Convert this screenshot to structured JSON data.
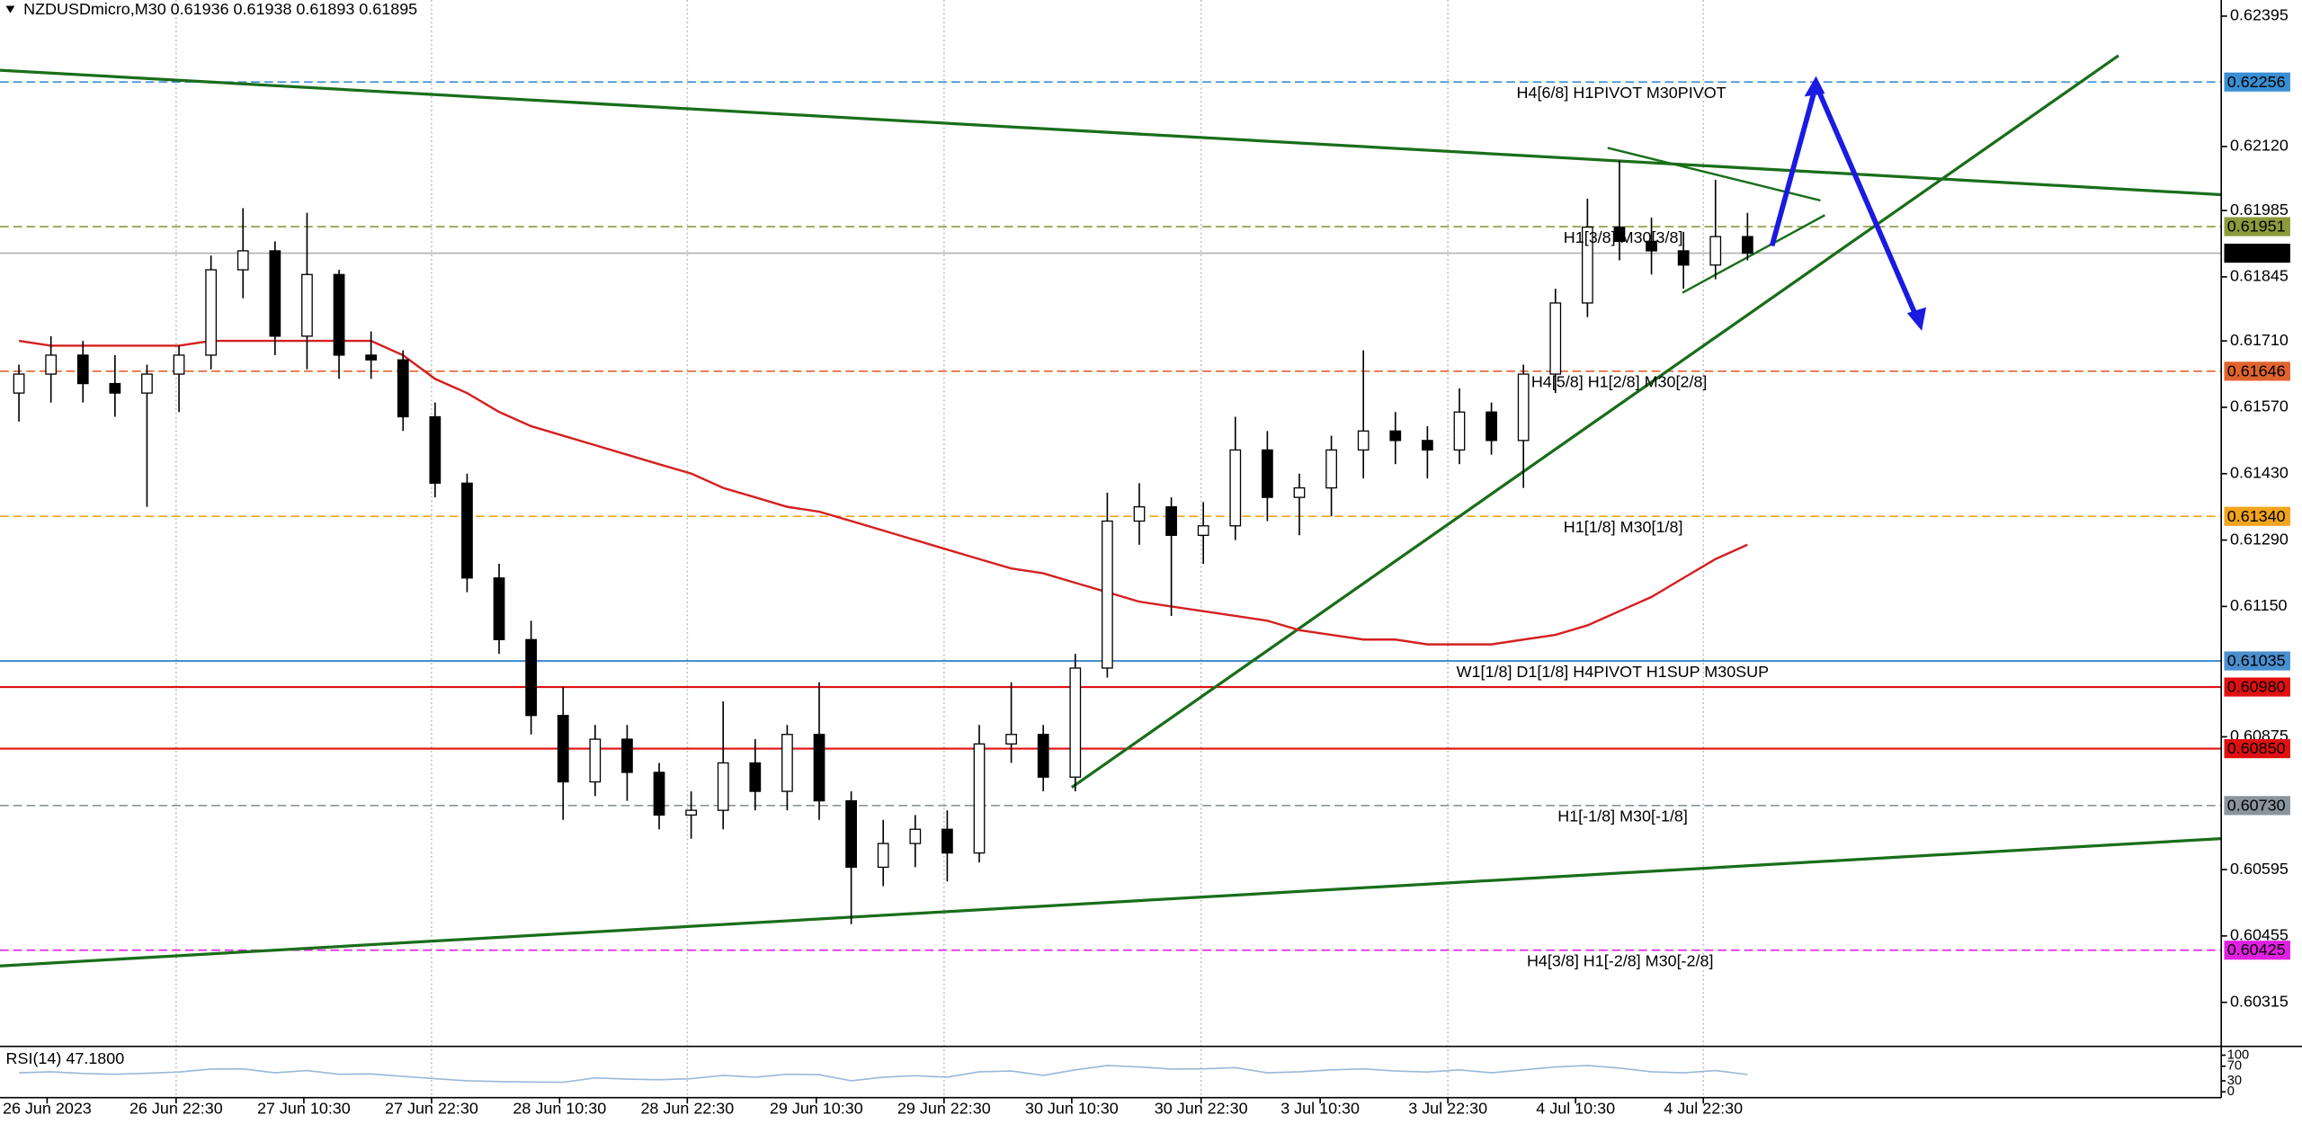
{
  "chart_data": {
    "type": "candlestick",
    "title": "NZDUSDmicro,M30  0.61936 0.61938 0.61893 0.61895",
    "open": [
      0.616,
      0.6164,
      0.6168,
      0.6162,
      0.616,
      0.6164,
      0.6168,
      0.6186,
      0.619,
      0.6172,
      0.6185,
      0.6168,
      0.6167,
      0.6155,
      0.6141,
      0.6121,
      0.6108,
      0.6092,
      0.6078,
      0.6087,
      0.608,
      0.6071,
      0.6072,
      0.6082,
      0.6076,
      0.6088,
      0.6074,
      0.606,
      0.6065,
      0.6068,
      0.6063,
      0.6086,
      0.6088,
      0.6079,
      0.6102,
      0.6133,
      0.6136,
      0.613,
      0.6132,
      0.6148,
      0.6138,
      0.614,
      0.6148,
      0.6152,
      0.615,
      0.6148,
      0.6156,
      0.615,
      0.6164,
      0.6179,
      0.6195,
      0.6192,
      0.619,
      0.6187,
      0.6193
    ],
    "high": [
      0.6166,
      0.6172,
      0.6171,
      0.6168,
      0.6166,
      0.617,
      0.6189,
      0.6199,
      0.6192,
      0.6198,
      0.6186,
      0.6173,
      0.6169,
      0.6158,
      0.6143,
      0.6124,
      0.6112,
      0.6098,
      0.609,
      0.609,
      0.6082,
      0.6076,
      0.6095,
      0.6087,
      0.609,
      0.6099,
      0.6076,
      0.607,
      0.6071,
      0.6072,
      0.609,
      0.6099,
      0.609,
      0.6105,
      0.6139,
      0.6141,
      0.6138,
      0.6137,
      0.6155,
      0.6152,
      0.6143,
      0.6151,
      0.6169,
      0.6156,
      0.6153,
      0.6161,
      0.6158,
      0.6166,
      0.6182,
      0.6201,
      0.6209,
      0.6197,
      0.6194,
      0.6205,
      0.6198
    ],
    "low": [
      0.6154,
      0.6158,
      0.6158,
      0.6155,
      0.6136,
      0.6156,
      0.6165,
      0.618,
      0.6168,
      0.6165,
      0.6163,
      0.6163,
      0.6152,
      0.6138,
      0.6118,
      0.6105,
      0.6088,
      0.607,
      0.6075,
      0.6074,
      0.6068,
      0.6066,
      0.6068,
      0.6072,
      0.6072,
      0.607,
      0.6048,
      0.6056,
      0.606,
      0.6057,
      0.6061,
      0.6082,
      0.6076,
      0.6076,
      0.61,
      0.6128,
      0.6113,
      0.6124,
      0.6129,
      0.6133,
      0.613,
      0.6134,
      0.6142,
      0.6145,
      0.6142,
      0.6145,
      0.6147,
      0.614,
      0.616,
      0.6176,
      0.6188,
      0.6185,
      0.6182,
      0.6184,
      0.6188
    ],
    "close": [
      0.6164,
      0.6168,
      0.6162,
      0.616,
      0.6164,
      0.6168,
      0.6186,
      0.619,
      0.6172,
      0.6185,
      0.6168,
      0.6167,
      0.6155,
      0.6141,
      0.6121,
      0.6108,
      0.6092,
      0.6078,
      0.6087,
      0.608,
      0.6071,
      0.6072,
      0.6082,
      0.6076,
      0.6088,
      0.6074,
      0.606,
      0.6065,
      0.6068,
      0.6063,
      0.6086,
      0.6088,
      0.6079,
      0.6102,
      0.6133,
      0.6136,
      0.613,
      0.6132,
      0.6148,
      0.6138,
      0.614,
      0.6148,
      0.6152,
      0.615,
      0.6148,
      0.6156,
      0.615,
      0.6164,
      0.6179,
      0.6195,
      0.6192,
      0.619,
      0.6187,
      0.6193,
      0.61895
    ],
    "ma": {
      "color": "#d42020",
      "values": [
        0.6171,
        0.617,
        0.617,
        0.617,
        0.617,
        0.617,
        0.6171,
        0.6171,
        0.6171,
        0.6171,
        0.6171,
        0.6171,
        0.6168,
        0.6163,
        0.616,
        0.6156,
        0.6153,
        0.6151,
        0.6149,
        0.6147,
        0.6145,
        0.6143,
        0.614,
        0.6138,
        0.6136,
        0.6135,
        0.6133,
        0.6131,
        0.6129,
        0.6127,
        0.6125,
        0.6123,
        0.6122,
        0.612,
        0.6118,
        0.6116,
        0.6115,
        0.6114,
        0.6113,
        0.6112,
        0.611,
        0.6109,
        0.6108,
        0.6108,
        0.6107,
        0.6107,
        0.6107,
        0.6108,
        0.6109,
        0.6111,
        0.6114,
        0.6117,
        0.6121,
        0.6125,
        0.6128
      ]
    },
    "xlim": [
      0,
      69.3
    ],
    "xticks": [
      {
        "value": 1.38,
        "label": "26 Jun 2023"
      },
      {
        "value": 5.41,
        "label": "26 Jun 22:30"
      },
      {
        "value": 9.4,
        "label": "27 Jun 10:30"
      },
      {
        "value": 13.39,
        "label": "27 Jun 22:30"
      },
      {
        "value": 17.39,
        "label": "28 Jun 10:30"
      },
      {
        "value": 21.38,
        "label": "28 Jun 22:30"
      },
      {
        "value": 25.41,
        "label": "29 Jun 10:30"
      },
      {
        "value": 29.4,
        "label": "29 Jun 22:30"
      },
      {
        "value": 33.39,
        "label": "30 Jun 10:30"
      },
      {
        "value": 37.43,
        "label": "30 Jun 22:30"
      },
      {
        "value": 41.15,
        "label": "3 Jul 10:30"
      },
      {
        "value": 45.14,
        "label": "3 Jul 22:30"
      },
      {
        "value": 49.13,
        "label": "4 Jul 10:30"
      },
      {
        "value": 53.12,
        "label": "4 Jul 22:30"
      }
    ],
    "xgrid": true,
    "ylim": [
      0.60222,
      0.62429
    ],
    "yticks": [
      0.62395,
      {
        "value": 0.6212,
        "label": "0.62120"
      },
      0.61985,
      0.61845,
      {
        "value": 0.6171,
        "label": "0.61710"
      },
      {
        "value": 0.6157,
        "label": "0.61570"
      },
      {
        "value": 0.6143,
        "label": "0.61430"
      },
      {
        "value": 0.6129,
        "label": "0.61290"
      },
      {
        "value": 0.6115,
        "label": "0.61150"
      },
      0.60875,
      0.60595,
      0.60455,
      0.60315
    ],
    "levels": [
      {
        "value": 0.62256,
        "text": "H4[6/8] H1PIVOT M30PIVOT",
        "color": "#3a8fd4",
        "style": "dashed"
      },
      {
        "value": 0.61951,
        "text": "H1[3/8] M30[3/8]",
        "color": "#8c9a3c",
        "style": "dashed"
      },
      {
        "value": 0.61895,
        "color": "#000000",
        "style": "current"
      },
      {
        "value": 0.61646,
        "text": "H4[5/8] H1[2/8] M30[2/8]",
        "color": "#e0632e",
        "style": "dashed"
      },
      {
        "value": 0.6134,
        "label": "0.61340",
        "text": "H1[1/8] M30[1/8]",
        "color": "#f2a41c",
        "style": "dashed"
      },
      {
        "value": 0.61035,
        "text": "W1[1/8] D1[1/8] H4PIVOT H1SUP M30SUP",
        "color": "#4a8fd0",
        "style": "solid"
      },
      {
        "value": 0.6098,
        "label": "0.60980",
        "color": "#e01010",
        "style": "solid"
      },
      {
        "value": 0.6085,
        "label": "0.60850",
        "color": "#e01010",
        "style": "solid"
      },
      {
        "value": 0.6073,
        "label": "0.60730",
        "text": "H1[-1/8] M30[-1/8]",
        "color": "#8a949c",
        "style": "dashed"
      },
      {
        "value": 0.60425,
        "text": "H4[3/8] H1[-2/8] M30[-2/8]",
        "color": "#e020e0",
        "style": "dashed"
      }
    ],
    "rsi": {
      "title": "RSI(14) 47.1800",
      "color": "#9ab8d8",
      "ylim": [
        0,
        100
      ],
      "yticks": [
        100,
        70,
        30,
        0
      ],
      "values": [
        52,
        55,
        50,
        48,
        51,
        54,
        62,
        63,
        52,
        58,
        48,
        49,
        42,
        36,
        30,
        28,
        27,
        26,
        38,
        35,
        33,
        36,
        45,
        40,
        48,
        47,
        30,
        40,
        44,
        40,
        55,
        57,
        45,
        60,
        72,
        68,
        62,
        63,
        66,
        52,
        55,
        60,
        63,
        57,
        54,
        60,
        52,
        60,
        68,
        72,
        65,
        55,
        52,
        58,
        47.18
      ]
    }
  }
}
